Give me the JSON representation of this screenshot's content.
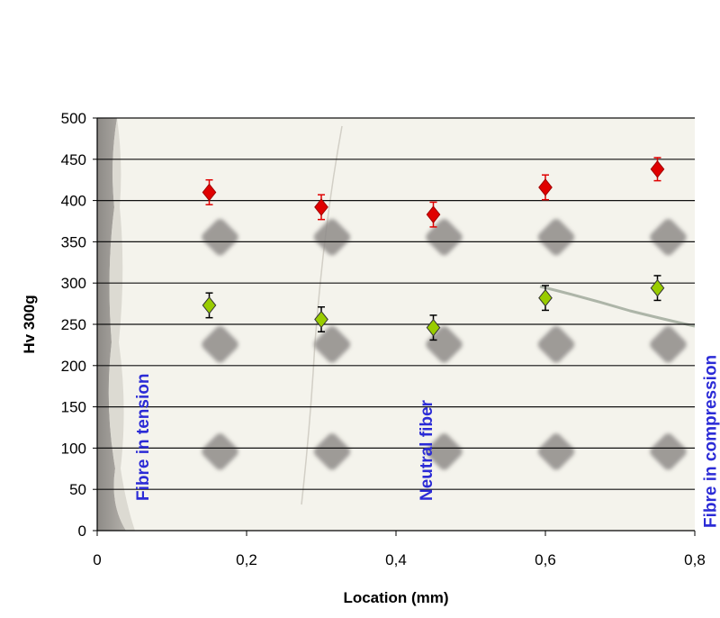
{
  "chart_data": {
    "type": "scatter",
    "title": "",
    "xlabel": "Location (mm)",
    "ylabel": "Hv 300g",
    "xlim": [
      0,
      0.8
    ],
    "ylim": [
      0,
      500
    ],
    "x_ticks": [
      "0",
      "0,2",
      "0,4",
      "0,6",
      "0,8"
    ],
    "x_tick_values": [
      0,
      0.2,
      0.4,
      0.6,
      0.8
    ],
    "y_ticks": [
      "0",
      "50",
      "100",
      "150",
      "200",
      "250",
      "300",
      "350",
      "400",
      "450",
      "500"
    ],
    "y_tick_values": [
      0,
      50,
      100,
      150,
      200,
      250,
      300,
      350,
      400,
      450,
      500
    ],
    "grid": "horizontal",
    "legend": "none",
    "series": [
      {
        "color": "#e00000",
        "marker": "diamond",
        "x": [
          0.15,
          0.3,
          0.45,
          0.6,
          0.75
        ],
        "y": [
          410,
          392,
          383,
          416,
          438
        ],
        "error": [
          15,
          15,
          15,
          15,
          14
        ]
      },
      {
        "color": "#99cc00",
        "marker": "diamond",
        "x": [
          0.15,
          0.3,
          0.45,
          0.6,
          0.75
        ],
        "y": [
          273,
          256,
          246,
          282,
          294
        ],
        "error": [
          15,
          15,
          15,
          15,
          15
        ]
      }
    ],
    "annotations": [
      {
        "text": "Fibre in tension",
        "x": 0.06,
        "y": 0
      },
      {
        "text": "Neutral fiber",
        "x": 0.44,
        "y": 0
      },
      {
        "text": "Fibre in compression",
        "x": 0.82,
        "y": 0
      }
    ]
  }
}
